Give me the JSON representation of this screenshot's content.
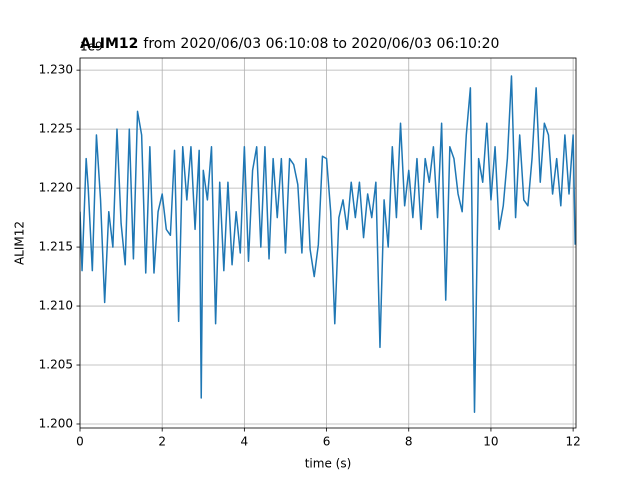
{
  "chart_data": {
    "type": "line",
    "title_name": "ALIM12",
    "title_rest": "from 2020/06/03 06:10:08 to 2020/06/03 06:10:20",
    "y_offset_label": "1e9",
    "xlabel": "time (s)",
    "ylabel": "ALIM12",
    "color": "#1f77b4",
    "grid": true,
    "xlim": [
      0,
      12.07
    ],
    "ylim": [
      1.19966,
      1.23103
    ],
    "xticks": [
      0,
      2,
      4,
      6,
      8,
      10,
      12
    ],
    "yticks": [
      {
        "value": 1.2,
        "label": "1.200"
      },
      {
        "value": 1.205,
        "label": "1.205"
      },
      {
        "value": 1.21,
        "label": "1.210"
      },
      {
        "value": 1.215,
        "label": "1.215"
      },
      {
        "value": 1.22,
        "label": "1.220"
      },
      {
        "value": 1.225,
        "label": "1.225"
      },
      {
        "value": 1.23,
        "label": "1.230"
      }
    ],
    "x": [
      0,
      0.05,
      0.15,
      0.2,
      0.3,
      0.4,
      0.5,
      0.6,
      0.7,
      0.8,
      0.9,
      1.0,
      1.1,
      1.2,
      1.3,
      1.4,
      1.5,
      1.6,
      1.7,
      1.8,
      1.9,
      2.0,
      2.1,
      2.2,
      2.3,
      2.4,
      2.5,
      2.6,
      2.7,
      2.8,
      2.9,
      2.95,
      3.0,
      3.1,
      3.2,
      3.3,
      3.4,
      3.5,
      3.6,
      3.7,
      3.8,
      3.9,
      4.0,
      4.1,
      4.2,
      4.3,
      4.4,
      4.5,
      4.6,
      4.7,
      4.8,
      4.9,
      5.0,
      5.1,
      5.2,
      5.3,
      5.4,
      5.5,
      5.6,
      5.7,
      5.8,
      5.9,
      6.0,
      6.1,
      6.2,
      6.3,
      6.4,
      6.5,
      6.6,
      6.7,
      6.8,
      6.9,
      7.0,
      7.1,
      7.2,
      7.3,
      7.4,
      7.5,
      7.6,
      7.7,
      7.8,
      7.9,
      8.0,
      8.1,
      8.2,
      8.3,
      8.4,
      8.5,
      8.6,
      8.7,
      8.8,
      8.9,
      9.0,
      9.1,
      9.2,
      9.3,
      9.4,
      9.5,
      9.6,
      9.7,
      9.8,
      9.9,
      10.0,
      10.1,
      10.2,
      10.3,
      10.4,
      10.5,
      10.6,
      10.7,
      10.8,
      10.9,
      11.0,
      11.1,
      11.2,
      11.3,
      11.4,
      11.5,
      11.6,
      11.7,
      11.8,
      11.9,
      12.0,
      12.05
    ],
    "values": [
      1.218,
      1.213,
      1.2225,
      1.22,
      1.213,
      1.2245,
      1.219,
      1.2103,
      1.218,
      1.215,
      1.225,
      1.217,
      1.2135,
      1.225,
      1.214,
      1.2265,
      1.2245,
      1.2128,
      1.2235,
      1.2128,
      1.218,
      1.2195,
      1.2165,
      1.216,
      1.2232,
      1.2087,
      1.2235,
      1.219,
      1.2235,
      1.2165,
      1.2232,
      1.2022,
      1.2215,
      1.219,
      1.2235,
      1.2085,
      1.2205,
      1.213,
      1.2205,
      1.2135,
      1.218,
      1.2145,
      1.2235,
      1.2138,
      1.2215,
      1.2235,
      1.215,
      1.2235,
      1.214,
      1.2225,
      1.2175,
      1.2225,
      1.2145,
      1.2225,
      1.222,
      1.2203,
      1.2145,
      1.2225,
      1.2148,
      1.2125,
      1.2152,
      1.2227,
      1.2225,
      1.218,
      1.2085,
      1.2175,
      1.219,
      1.2165,
      1.2205,
      1.2175,
      1.2205,
      1.2158,
      1.2195,
      1.2175,
      1.2205,
      1.2065,
      1.219,
      1.215,
      1.2235,
      1.2175,
      1.2255,
      1.2185,
      1.2215,
      1.2175,
      1.2225,
      1.2165,
      1.2225,
      1.2205,
      1.2235,
      1.2175,
      1.2255,
      1.2105,
      1.2235,
      1.2225,
      1.2195,
      1.218,
      1.2245,
      1.2285,
      1.201,
      1.2225,
      1.2205,
      1.2255,
      1.219,
      1.2235,
      1.2165,
      1.2185,
      1.2225,
      1.2295,
      1.2175,
      1.2245,
      1.219,
      1.2185,
      1.2225,
      1.2285,
      1.2205,
      1.2255,
      1.2245,
      1.2195,
      1.2225,
      1.2185,
      1.2245,
      1.2195,
      1.2245,
      1.2152
    ]
  }
}
